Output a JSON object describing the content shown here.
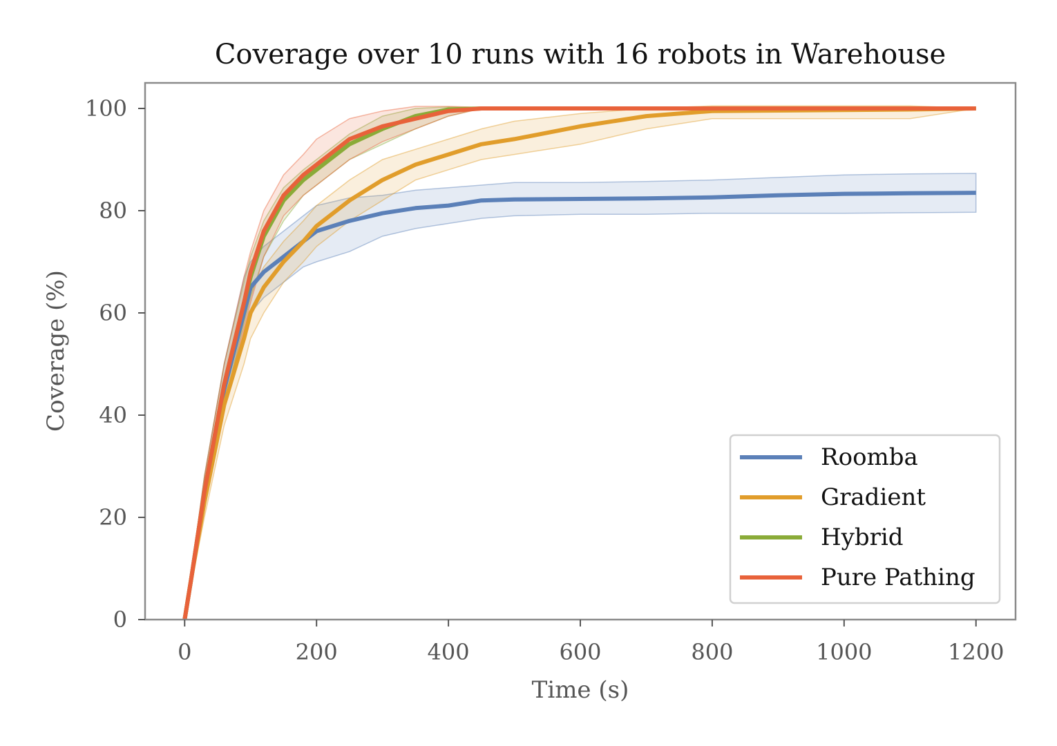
{
  "chart_data": {
    "type": "line",
    "title": "Coverage over 10 runs with 16 robots in Warehouse",
    "xlabel": "Time (s)",
    "ylabel": "Coverage (%)",
    "xlim": [
      -60,
      1260
    ],
    "ylim": [
      0,
      105
    ],
    "xticks": [
      0,
      200,
      400,
      600,
      800,
      1000,
      1200
    ],
    "yticks": [
      0,
      20,
      40,
      60,
      80,
      100
    ],
    "grid": false,
    "legend_position": "bottom-right",
    "series": [
      {
        "name": "Roomba",
        "color": "#5b80b8",
        "x": [
          0,
          10,
          30,
          60,
          90,
          100,
          120,
          150,
          180,
          200,
          250,
          300,
          350,
          400,
          450,
          500,
          600,
          700,
          800,
          900,
          1000,
          1100,
          1200
        ],
        "mean": [
          0,
          8,
          25,
          45,
          60,
          65,
          68,
          71,
          74,
          76,
          78,
          79.5,
          80.5,
          81,
          82,
          82.2,
          82.3,
          82.4,
          82.6,
          83,
          83.3,
          83.4,
          83.5
        ],
        "upper": [
          0,
          9,
          28,
          50,
          67,
          70,
          73,
          76,
          79,
          81,
          82.5,
          83,
          84,
          84.5,
          85,
          85.5,
          85.5,
          85.7,
          86,
          86.5,
          87,
          87.2,
          87.3
        ],
        "lower": [
          0,
          7,
          22,
          41,
          56,
          60,
          63,
          66,
          69,
          70,
          72,
          75,
          76.5,
          77.5,
          78.5,
          79,
          79.3,
          79.3,
          79.5,
          79.5,
          79.5,
          79.6,
          79.7
        ]
      },
      {
        "name": "Gradient",
        "color": "#e19d2b",
        "x": [
          0,
          10,
          30,
          60,
          90,
          100,
          120,
          150,
          180,
          200,
          250,
          300,
          350,
          400,
          450,
          500,
          600,
          700,
          800,
          900,
          1000,
          1100,
          1200
        ],
        "mean": [
          0,
          8,
          23,
          42,
          55,
          60,
          65,
          70,
          74,
          77,
          82,
          86,
          89,
          91,
          93,
          94,
          96.5,
          98.5,
          99.5,
          99.6,
          99.7,
          99.8,
          100
        ],
        "upper": [
          0,
          9,
          26,
          46,
          59,
          64,
          69,
          74,
          78,
          81,
          86,
          90,
          92,
          94,
          96,
          97.5,
          99,
          100,
          100.5,
          100.5,
          100.5,
          100.5,
          100
        ],
        "lower": [
          0,
          7,
          20,
          38,
          50,
          55,
          60,
          66,
          70,
          73,
          78,
          82,
          86,
          88,
          90,
          91,
          93,
          96,
          98,
          98,
          98,
          98,
          100
        ]
      },
      {
        "name": "Hybrid",
        "color": "#8aab38",
        "x": [
          0,
          10,
          30,
          60,
          90,
          100,
          120,
          150,
          180,
          200,
          250,
          300,
          350,
          400,
          450,
          500,
          600,
          700,
          800,
          900,
          1000,
          1100,
          1200
        ],
        "mean": [
          0,
          8,
          25,
          46,
          62,
          67,
          75,
          82,
          86,
          88,
          93,
          96,
          98.5,
          99.8,
          100,
          100,
          100,
          100,
          100,
          100,
          100,
          100,
          100
        ],
        "upper": [
          0,
          9,
          28,
          50,
          66,
          71,
          78,
          84.5,
          88,
          90,
          95,
          98.5,
          100,
          100.3,
          100.2,
          100,
          100,
          100,
          100,
          100,
          100,
          100,
          100
        ],
        "lower": [
          0,
          7,
          22,
          42,
          58,
          63,
          71,
          78,
          83,
          85,
          90,
          93,
          96,
          98.5,
          100,
          100,
          100,
          100,
          100,
          100,
          100,
          100,
          100
        ]
      },
      {
        "name": "Pure Pathing",
        "color": "#e8623a",
        "x": [
          0,
          10,
          30,
          60,
          90,
          100,
          120,
          150,
          180,
          200,
          250,
          300,
          350,
          400,
          450,
          500,
          600,
          700,
          800,
          900,
          1000,
          1100,
          1200
        ],
        "mean": [
          0,
          8,
          25,
          46,
          62,
          68,
          76,
          83,
          87,
          89,
          94,
          96.5,
          98,
          99.5,
          100,
          100,
          100,
          100,
          100,
          100,
          100,
          100,
          100
        ],
        "upper": [
          0,
          9,
          28,
          50,
          67,
          72,
          80,
          87,
          91,
          94,
          98,
          99.5,
          100.4,
          100.4,
          100.2,
          100,
          100,
          100,
          100,
          100,
          100,
          100,
          100
        ],
        "lower": [
          0,
          7,
          22,
          42,
          57,
          62,
          71,
          79,
          83,
          85,
          90,
          93.5,
          96,
          98.5,
          100,
          100,
          100,
          100,
          100,
          100,
          100,
          100,
          100
        ]
      }
    ]
  }
}
